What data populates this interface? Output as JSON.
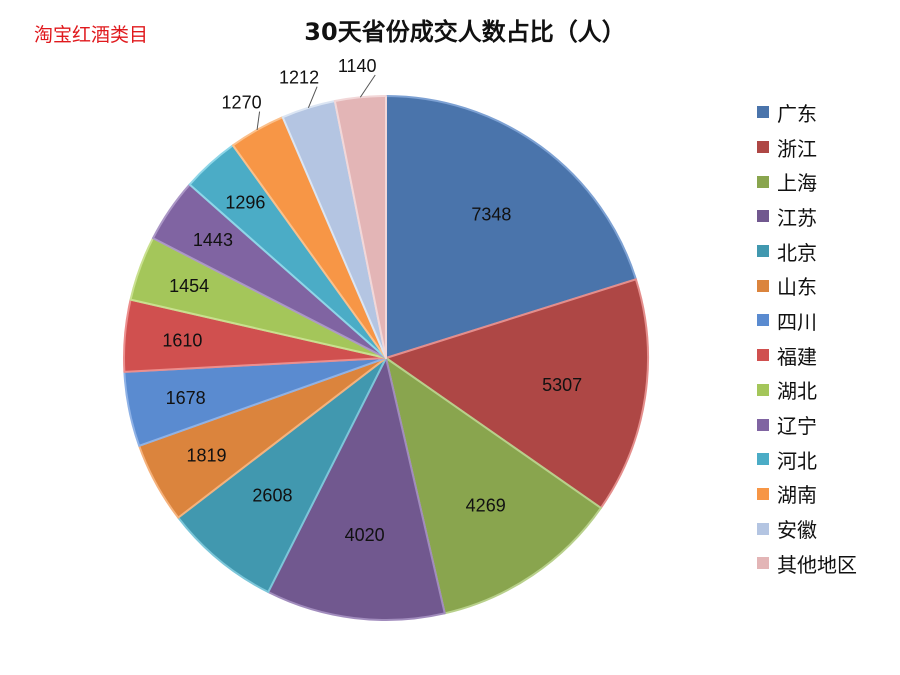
{
  "corner_label": "淘宝红酒类目",
  "chart_data": {
    "type": "pie",
    "title": "30天省份成交人数占比（人）",
    "legend_position": "right",
    "categories": [
      "广东",
      "浙江",
      "上海",
      "江苏",
      "北京",
      "山东",
      "四川",
      "福建",
      "湖北",
      "辽宁",
      "河北",
      "湖南",
      "安徽",
      "其他地区"
    ],
    "values": [
      7348,
      5307,
      4269,
      4020,
      2608,
      1819,
      1678,
      1610,
      1454,
      1443,
      1296,
      1270,
      1212,
      1140
    ],
    "colors": [
      "#4a74ab",
      "#ae4745",
      "#89a54e",
      "#71588f",
      "#4198af",
      "#db843d",
      "#5a8bd0",
      "#d0504f",
      "#a4c65a",
      "#8064a2",
      "#4bacc6",
      "#f79646",
      "#b4c5e2",
      "#e3b5b6"
    ],
    "border_colors": [
      "#7da1d3",
      "#e48e8c",
      "#b8d08b",
      "#a18cbd",
      "#7cc6d9",
      "#f5b27c",
      "#8fb2e6",
      "#ec8e8d",
      "#c9e08f",
      "#ab97c6",
      "#8ed6e8",
      "#fbc08b",
      "#dbe5f3",
      "#f2d7d8"
    ]
  }
}
